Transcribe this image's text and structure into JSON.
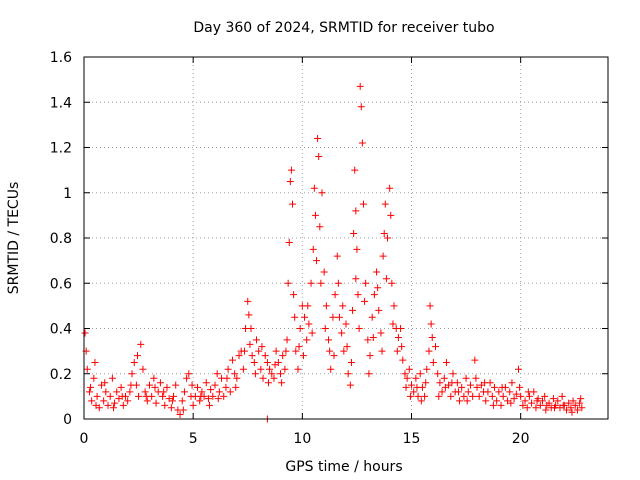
{
  "chart_data": {
    "type": "scatter",
    "title": "Day 360 of 2024, SRMTID for receiver tubo",
    "xlabel": "GPS time / hours",
    "ylabel": "SRMTID / TECUs",
    "xlim": [
      0,
      24
    ],
    "ylim": [
      0,
      1.6
    ],
    "xticks": [
      0,
      5,
      10,
      15,
      20
    ],
    "yticks": [
      0,
      0.2,
      0.4,
      0.6,
      0.8,
      1.0,
      1.2,
      1.4,
      1.6
    ],
    "xtick_labels": [
      "0",
      "5",
      "10",
      "15",
      "20"
    ],
    "ytick_labels": [
      "0",
      "0.2",
      "0.4",
      "0.6",
      "0.8",
      "1",
      "1.2",
      "1.4",
      "1.6"
    ],
    "grid": true,
    "marker": "plus",
    "series": [
      {
        "name": "SRMTID",
        "color": "#ff0000",
        "points": [
          [
            0.05,
            0.38
          ],
          [
            0.1,
            0.3
          ],
          [
            0.15,
            0.22
          ],
          [
            0.25,
            0.12
          ],
          [
            0.35,
            0.08
          ],
          [
            0.45,
            0.18
          ],
          [
            0.5,
            0.25
          ],
          [
            0.6,
            0.1
          ],
          [
            0.7,
            0.05
          ],
          [
            0.8,
            0.15
          ],
          [
            0.9,
            0.08
          ],
          [
            1.0,
            0.12
          ],
          [
            1.1,
            0.06
          ],
          [
            1.2,
            0.1
          ],
          [
            1.3,
            0.18
          ],
          [
            1.4,
            0.07
          ],
          [
            1.5,
            0.12
          ],
          [
            1.6,
            0.09
          ],
          [
            1.7,
            0.14
          ],
          [
            1.8,
            0.06
          ],
          [
            1.9,
            0.1
          ],
          [
            2.0,
            0.08
          ],
          [
            2.1,
            0.12
          ],
          [
            2.2,
            0.2
          ],
          [
            2.3,
            0.25
          ],
          [
            2.4,
            0.15
          ],
          [
            2.5,
            0.1
          ],
          [
            2.6,
            0.33
          ],
          [
            2.7,
            0.22
          ],
          [
            2.8,
            0.12
          ],
          [
            2.9,
            0.08
          ],
          [
            3.0,
            0.15
          ],
          [
            3.1,
            0.1
          ],
          [
            3.2,
            0.18
          ],
          [
            3.3,
            0.07
          ],
          [
            3.4,
            0.12
          ],
          [
            3.5,
            0.16
          ],
          [
            3.6,
            0.1
          ],
          [
            3.7,
            0.06
          ],
          [
            3.8,
            0.14
          ],
          [
            3.9,
            0.09
          ],
          [
            4.0,
            0.05
          ],
          [
            4.1,
            0.1
          ],
          [
            4.2,
            0.15
          ],
          [
            4.3,
            0.04
          ],
          [
            4.4,
            0.02
          ],
          [
            4.5,
            0.08
          ],
          [
            4.6,
            0.12
          ],
          [
            4.7,
            0.18
          ],
          [
            4.8,
            0.2
          ],
          [
            4.9,
            0.1
          ],
          [
            5.0,
            0.06
          ],
          [
            5.1,
            0.1
          ],
          [
            5.2,
            0.14
          ],
          [
            5.3,
            0.08
          ],
          [
            5.4,
            0.12
          ],
          [
            5.5,
            0.1
          ],
          [
            5.6,
            0.16
          ],
          [
            5.7,
            0.09
          ],
          [
            5.8,
            0.13
          ],
          [
            5.9,
            0.1
          ],
          [
            6.0,
            0.15
          ],
          [
            6.1,
            0.2
          ],
          [
            6.2,
            0.12
          ],
          [
            6.3,
            0.18
          ],
          [
            6.4,
            0.1
          ],
          [
            6.5,
            0.14
          ],
          [
            6.6,
            0.22
          ],
          [
            6.7,
            0.12
          ],
          [
            6.8,
            0.26
          ],
          [
            6.9,
            0.2
          ],
          [
            7.0,
            0.18
          ],
          [
            7.1,
            0.28
          ],
          [
            7.2,
            0.3
          ],
          [
            7.3,
            0.22
          ],
          [
            7.4,
            0.4
          ],
          [
            7.5,
            0.52
          ],
          [
            7.55,
            0.46
          ],
          [
            7.6,
            0.33
          ],
          [
            7.7,
            0.28
          ],
          [
            7.8,
            0.25
          ],
          [
            7.9,
            0.35
          ],
          [
            8.0,
            0.3
          ],
          [
            8.1,
            0.22
          ],
          [
            8.2,
            0.18
          ],
          [
            8.3,
            0.28
          ],
          [
            8.4,
            0.25
          ],
          [
            8.5,
            0.22
          ],
          [
            8.6,
            0.2
          ],
          [
            8.7,
            0.18
          ],
          [
            8.8,
            0.3
          ],
          [
            8.9,
            0.25
          ],
          [
            9.0,
            0.2
          ],
          [
            9.1,
            0.28
          ],
          [
            9.2,
            0.22
          ],
          [
            9.3,
            0.35
          ],
          [
            9.35,
            0.6
          ],
          [
            9.4,
            0.78
          ],
          [
            9.45,
            1.05
          ],
          [
            9.5,
            1.1
          ],
          [
            9.55,
            0.95
          ],
          [
            9.6,
            0.55
          ],
          [
            9.7,
            0.3
          ],
          [
            9.8,
            0.22
          ],
          [
            9.9,
            0.4
          ],
          [
            10.0,
            0.5
          ],
          [
            10.1,
            0.45
          ],
          [
            10.2,
            0.35
          ],
          [
            10.3,
            0.42
          ],
          [
            10.4,
            0.6
          ],
          [
            10.5,
            0.75
          ],
          [
            10.55,
            1.02
          ],
          [
            10.6,
            0.9
          ],
          [
            10.7,
            1.24
          ],
          [
            10.75,
            1.16
          ],
          [
            10.8,
            0.85
          ],
          [
            10.9,
            1.0
          ],
          [
            11.0,
            0.65
          ],
          [
            11.1,
            0.5
          ],
          [
            11.2,
            0.35
          ],
          [
            11.3,
            0.22
          ],
          [
            11.4,
            0.45
          ],
          [
            11.5,
            0.55
          ],
          [
            11.6,
            0.72
          ],
          [
            11.7,
            0.45
          ],
          [
            11.8,
            0.38
          ],
          [
            11.9,
            0.3
          ],
          [
            12.0,
            0.42
          ],
          [
            12.1,
            0.2
          ],
          [
            12.2,
            0.15
          ],
          [
            12.3,
            0.48
          ],
          [
            12.35,
            0.82
          ],
          [
            12.4,
            1.1
          ],
          [
            12.45,
            0.92
          ],
          [
            12.5,
            0.75
          ],
          [
            12.55,
            0.55
          ],
          [
            12.6,
            0.4
          ],
          [
            12.65,
            1.47
          ],
          [
            12.7,
            1.38
          ],
          [
            12.75,
            1.22
          ],
          [
            12.8,
            0.95
          ],
          [
            12.9,
            0.6
          ],
          [
            13.0,
            0.35
          ],
          [
            13.1,
            0.28
          ],
          [
            13.2,
            0.45
          ],
          [
            13.3,
            0.55
          ],
          [
            13.4,
            0.65
          ],
          [
            13.5,
            0.48
          ],
          [
            13.6,
            0.38
          ],
          [
            13.7,
            0.72
          ],
          [
            13.75,
            0.82
          ],
          [
            13.8,
            0.95
          ],
          [
            13.9,
            0.8
          ],
          [
            14.0,
            1.02
          ],
          [
            14.05,
            0.9
          ],
          [
            14.1,
            0.6
          ],
          [
            14.2,
            0.5
          ],
          [
            14.3,
            0.4
          ],
          [
            14.4,
            0.36
          ],
          [
            14.5,
            0.4
          ],
          [
            14.6,
            0.26
          ],
          [
            14.7,
            0.2
          ],
          [
            14.8,
            0.18
          ],
          [
            14.9,
            0.22
          ],
          [
            15.0,
            0.15
          ],
          [
            15.1,
            0.12
          ],
          [
            15.2,
            0.18
          ],
          [
            15.3,
            0.1
          ],
          [
            15.4,
            0.2
          ],
          [
            15.5,
            0.14
          ],
          [
            15.6,
            0.1
          ],
          [
            15.7,
            0.22
          ],
          [
            15.8,
            0.3
          ],
          [
            15.85,
            0.5
          ],
          [
            15.9,
            0.42
          ],
          [
            16.0,
            0.25
          ],
          [
            16.1,
            0.32
          ],
          [
            16.2,
            0.2
          ],
          [
            16.3,
            0.16
          ],
          [
            16.4,
            0.12
          ],
          [
            16.5,
            0.18
          ],
          [
            16.6,
            0.25
          ],
          [
            16.7,
            0.15
          ],
          [
            16.8,
            0.1
          ],
          [
            16.9,
            0.2
          ],
          [
            17.0,
            0.12
          ],
          [
            17.1,
            0.16
          ],
          [
            17.2,
            0.08
          ],
          [
            17.3,
            0.14
          ],
          [
            17.4,
            0.1
          ],
          [
            17.5,
            0.18
          ],
          [
            17.6,
            0.12
          ],
          [
            17.7,
            0.15
          ],
          [
            17.8,
            0.1
          ],
          [
            17.9,
            0.26
          ],
          [
            18.0,
            0.14
          ],
          [
            18.1,
            0.1
          ],
          [
            18.2,
            0.15
          ],
          [
            18.3,
            0.12
          ],
          [
            18.4,
            0.08
          ],
          [
            18.5,
            0.12
          ],
          [
            18.6,
            0.16
          ],
          [
            18.7,
            0.1
          ],
          [
            18.8,
            0.14
          ],
          [
            18.9,
            0.08
          ],
          [
            19.0,
            0.12
          ],
          [
            19.1,
            0.06
          ],
          [
            19.2,
            0.1
          ],
          [
            19.3,
            0.14
          ],
          [
            19.4,
            0.08
          ],
          [
            19.5,
            0.12
          ],
          [
            19.6,
            0.16
          ],
          [
            19.7,
            0.09
          ],
          [
            19.8,
            0.11
          ],
          [
            19.9,
            0.22
          ],
          [
            20.0,
            0.1
          ],
          [
            20.1,
            0.06
          ],
          [
            20.2,
            0.08
          ],
          [
            20.3,
            0.05
          ],
          [
            20.4,
            0.1
          ],
          [
            20.5,
            0.07
          ],
          [
            20.6,
            0.12
          ],
          [
            20.7,
            0.05
          ],
          [
            20.8,
            0.09
          ],
          [
            20.9,
            0.06
          ],
          [
            21.0,
            0.08
          ],
          [
            21.1,
            0.1
          ],
          [
            21.2,
            0.06
          ],
          [
            21.3,
            0.07
          ],
          [
            21.4,
            0.05
          ],
          [
            21.5,
            0.09
          ],
          [
            21.6,
            0.06
          ],
          [
            21.7,
            0.08
          ],
          [
            21.8,
            0.05
          ],
          [
            21.9,
            0.1
          ],
          [
            22.0,
            0.06
          ],
          [
            22.1,
            0.04
          ],
          [
            22.2,
            0.07
          ],
          [
            22.3,
            0.05
          ],
          [
            22.4,
            0.08
          ],
          [
            22.5,
            0.06
          ],
          [
            22.6,
            0.04
          ],
          [
            22.7,
            0.07
          ],
          [
            22.8,
            0.05
          ],
          [
            0.3,
            0.14
          ],
          [
            0.55,
            0.06
          ],
          [
            0.95,
            0.16
          ],
          [
            1.35,
            0.05
          ],
          [
            1.75,
            0.1
          ],
          [
            2.15,
            0.15
          ],
          [
            2.45,
            0.28
          ],
          [
            2.85,
            0.1
          ],
          [
            3.25,
            0.14
          ],
          [
            3.65,
            0.12
          ],
          [
            4.05,
            0.08
          ],
          [
            4.55,
            0.04
          ],
          [
            4.95,
            0.15
          ],
          [
            5.35,
            0.1
          ],
          [
            5.75,
            0.06
          ],
          [
            6.15,
            0.09
          ],
          [
            6.55,
            0.18
          ],
          [
            6.95,
            0.14
          ],
          [
            7.35,
            0.3
          ],
          [
            7.65,
            0.4
          ],
          [
            7.85,
            0.2
          ],
          [
            8.15,
            0.32
          ],
          [
            8.45,
            0.16
          ],
          [
            8.75,
            0.24
          ],
          [
            9.05,
            0.16
          ],
          [
            9.25,
            0.3
          ],
          [
            9.65,
            0.45
          ],
          [
            9.85,
            0.32
          ],
          [
            10.05,
            0.28
          ],
          [
            10.25,
            0.5
          ],
          [
            10.45,
            0.38
          ],
          [
            10.65,
            0.7
          ],
          [
            10.85,
            0.6
          ],
          [
            11.05,
            0.4
          ],
          [
            11.25,
            0.3
          ],
          [
            11.45,
            0.28
          ],
          [
            11.65,
            0.6
          ],
          [
            11.85,
            0.5
          ],
          [
            12.05,
            0.32
          ],
          [
            12.25,
            0.25
          ],
          [
            12.45,
            0.62
          ],
          [
            12.85,
            0.52
          ],
          [
            13.05,
            0.2
          ],
          [
            13.25,
            0.36
          ],
          [
            13.45,
            0.58
          ],
          [
            13.65,
            0.3
          ],
          [
            13.85,
            0.62
          ],
          [
            14.15,
            0.42
          ],
          [
            14.35,
            0.3
          ],
          [
            14.55,
            0.32
          ],
          [
            14.75,
            0.14
          ],
          [
            14.95,
            0.1
          ],
          [
            15.25,
            0.14
          ],
          [
            15.45,
            0.08
          ],
          [
            15.65,
            0.16
          ],
          [
            15.95,
            0.36
          ],
          [
            16.25,
            0.1
          ],
          [
            16.55,
            0.14
          ],
          [
            16.85,
            0.16
          ],
          [
            17.15,
            0.12
          ],
          [
            17.55,
            0.08
          ],
          [
            17.95,
            0.18
          ],
          [
            18.35,
            0.16
          ],
          [
            18.75,
            0.06
          ],
          [
            19.15,
            0.14
          ],
          [
            19.55,
            0.07
          ],
          [
            19.95,
            0.14
          ],
          [
            20.35,
            0.12
          ],
          [
            20.75,
            0.08
          ],
          [
            21.15,
            0.04
          ],
          [
            21.55,
            0.05
          ],
          [
            21.95,
            0.06
          ],
          [
            22.35,
            0.03
          ],
          [
            22.75,
            0.09
          ],
          [
            8.4,
            0.0
          ]
        ]
      }
    ]
  }
}
